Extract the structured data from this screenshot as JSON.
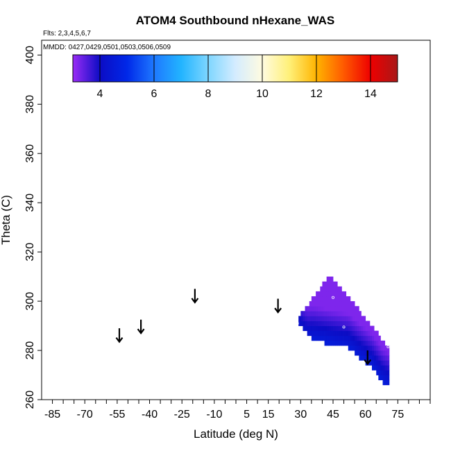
{
  "chart_data": {
    "type": "heatmap",
    "title": "ATOM4 Southbound nHexane_WAS",
    "flights_note": "Flts: 2,3,4,5,6,7",
    "dates_note": "MMDD: 0427,0429,0501,0503,0506,0509",
    "xlabel": "Latitude (deg N)",
    "ylabel": "Theta (C)",
    "xlim": [
      -90,
      90
    ],
    "ylim": [
      260,
      406
    ],
    "x_ticks": [
      -85,
      -80,
      -75,
      -70,
      -65,
      -60,
      -55,
      -50,
      -45,
      -40,
      -35,
      -30,
      -25,
      -20,
      -15,
      -10,
      -5,
      0,
      5,
      10,
      15,
      20,
      25,
      30,
      35,
      40,
      45,
      50,
      55,
      60,
      65,
      70,
      75,
      80,
      85,
      90
    ],
    "x_tick_labels": [
      {
        "value": -85,
        "label": "-85"
      },
      {
        "value": -70,
        "label": "-70"
      },
      {
        "value": -55,
        "label": "-55"
      },
      {
        "value": -40,
        "label": "-40"
      },
      {
        "value": -25,
        "label": "-25"
      },
      {
        "value": -10,
        "label": "-10"
      },
      {
        "value": 5,
        "label": "5"
      },
      {
        "value": 15,
        "label": "15"
      },
      {
        "value": 30,
        "label": "30"
      },
      {
        "value": 45,
        "label": "45"
      },
      {
        "value": 60,
        "label": "60"
      },
      {
        "value": 75,
        "label": "75"
      }
    ],
    "y_ticks": [
      260,
      280,
      300,
      320,
      340,
      360,
      380,
      400
    ],
    "colorbar": {
      "range": [
        3,
        15
      ],
      "ticks": [
        4,
        6,
        8,
        10,
        12,
        14
      ],
      "gradient_stops": [
        {
          "value": 3.0,
          "color": "#9a2cf6"
        },
        {
          "value": 4.0,
          "color": "#0c0cc4"
        },
        {
          "value": 5.0,
          "color": "#0028e8"
        },
        {
          "value": 6.0,
          "color": "#1e78ff"
        },
        {
          "value": 7.0,
          "color": "#22b4ff"
        },
        {
          "value": 8.0,
          "color": "#7ed6ff"
        },
        {
          "value": 9.0,
          "color": "#d4ecff"
        },
        {
          "value": 10.0,
          "color": "#fffbe0"
        },
        {
          "value": 11.0,
          "color": "#fff078"
        },
        {
          "value": 12.0,
          "color": "#ffb400"
        },
        {
          "value": 13.0,
          "color": "#ff5a00"
        },
        {
          "value": 14.0,
          "color": "#ee0000"
        },
        {
          "value": 15.0,
          "color": "#a81818"
        }
      ]
    },
    "field": {
      "description": "gridded nHexane mixing ratio, values roughly 3-5",
      "theta_top_ridge": {
        "lat": 43.5,
        "theta": 312
      },
      "left_edge": [
        [
          43.5,
          311
        ],
        [
          28,
          292
        ],
        [
          36,
          284
        ]
      ],
      "lower_edge": [
        [
          36,
          284
        ],
        [
          52,
          281
        ],
        [
          56,
          278
        ],
        [
          63,
          273
        ],
        [
          68,
          267
        ],
        [
          71,
          265
        ]
      ],
      "right_edge": [
        [
          71,
          265
        ],
        [
          71,
          281
        ],
        [
          52,
          302
        ],
        [
          43.5,
          311
        ]
      ],
      "cell_lat_step": 1.0,
      "cell_theta_step": 2.0,
      "value_low": 3.2,
      "value_high": 4.6
    },
    "sample_points": [
      {
        "lat": 45,
        "theta": 301.5
      },
      {
        "lat": 50,
        "theta": 289.5
      },
      {
        "lat": 28.5,
        "theta": 291
      },
      {
        "lat": 70.5,
        "theta": 281.5
      },
      {
        "lat": 71.5,
        "theta": 265
      }
    ],
    "tropopause_arrows": [
      {
        "lat": -54,
        "theta": 286
      },
      {
        "lat": -44,
        "theta": 289.5
      },
      {
        "lat": -19,
        "theta": 302
      },
      {
        "lat": 19.5,
        "theta": 298
      },
      {
        "lat": 61,
        "theta": 277
      }
    ]
  },
  "colors": {
    "axis": "#000000",
    "background": "#ffffff",
    "arrow": "#000000",
    "point_outline": "#ffffff"
  }
}
